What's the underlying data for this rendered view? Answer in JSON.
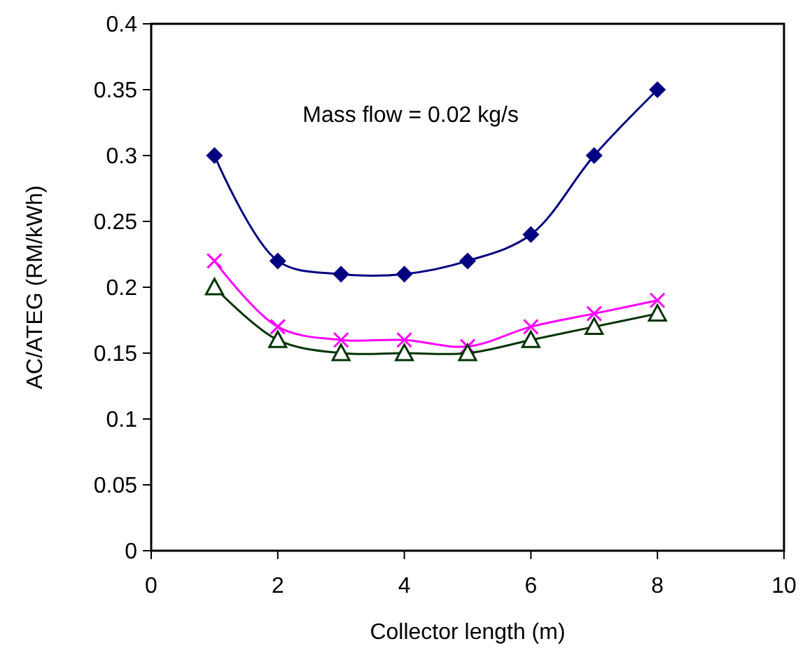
{
  "chart_data": {
    "type": "line",
    "xlabel": "Collector length (m)",
    "ylabel": "AC/ATEG (RM/kWh)",
    "annotations": [
      "Mass flow = 0.02 kg/s"
    ],
    "x": [
      1,
      2,
      3,
      4,
      5,
      6,
      7,
      8
    ],
    "series": [
      {
        "color": "#000080",
        "marker": "diamond",
        "values": [
          0.3,
          0.22,
          0.21,
          0.21,
          0.22,
          0.24,
          0.3,
          0.35
        ]
      },
      {
        "color": "#ff00ff",
        "marker": "cross",
        "values": [
          0.22,
          0.17,
          0.16,
          0.16,
          0.155,
          0.17,
          0.18,
          0.19
        ]
      },
      {
        "color": "#003300",
        "marker": "triangle",
        "values": [
          0.2,
          0.16,
          0.15,
          0.15,
          0.15,
          0.16,
          0.17,
          0.18
        ]
      }
    ],
    "xlim": [
      0,
      10
    ],
    "xticks": [
      0,
      2,
      4,
      6,
      8,
      10
    ],
    "ylim": [
      0,
      0.4
    ],
    "yticks": [
      0,
      0.05,
      0.1,
      0.15,
      0.2,
      0.25,
      0.3,
      0.35,
      0.4
    ],
    "grid": false,
    "line_style": "solid"
  }
}
